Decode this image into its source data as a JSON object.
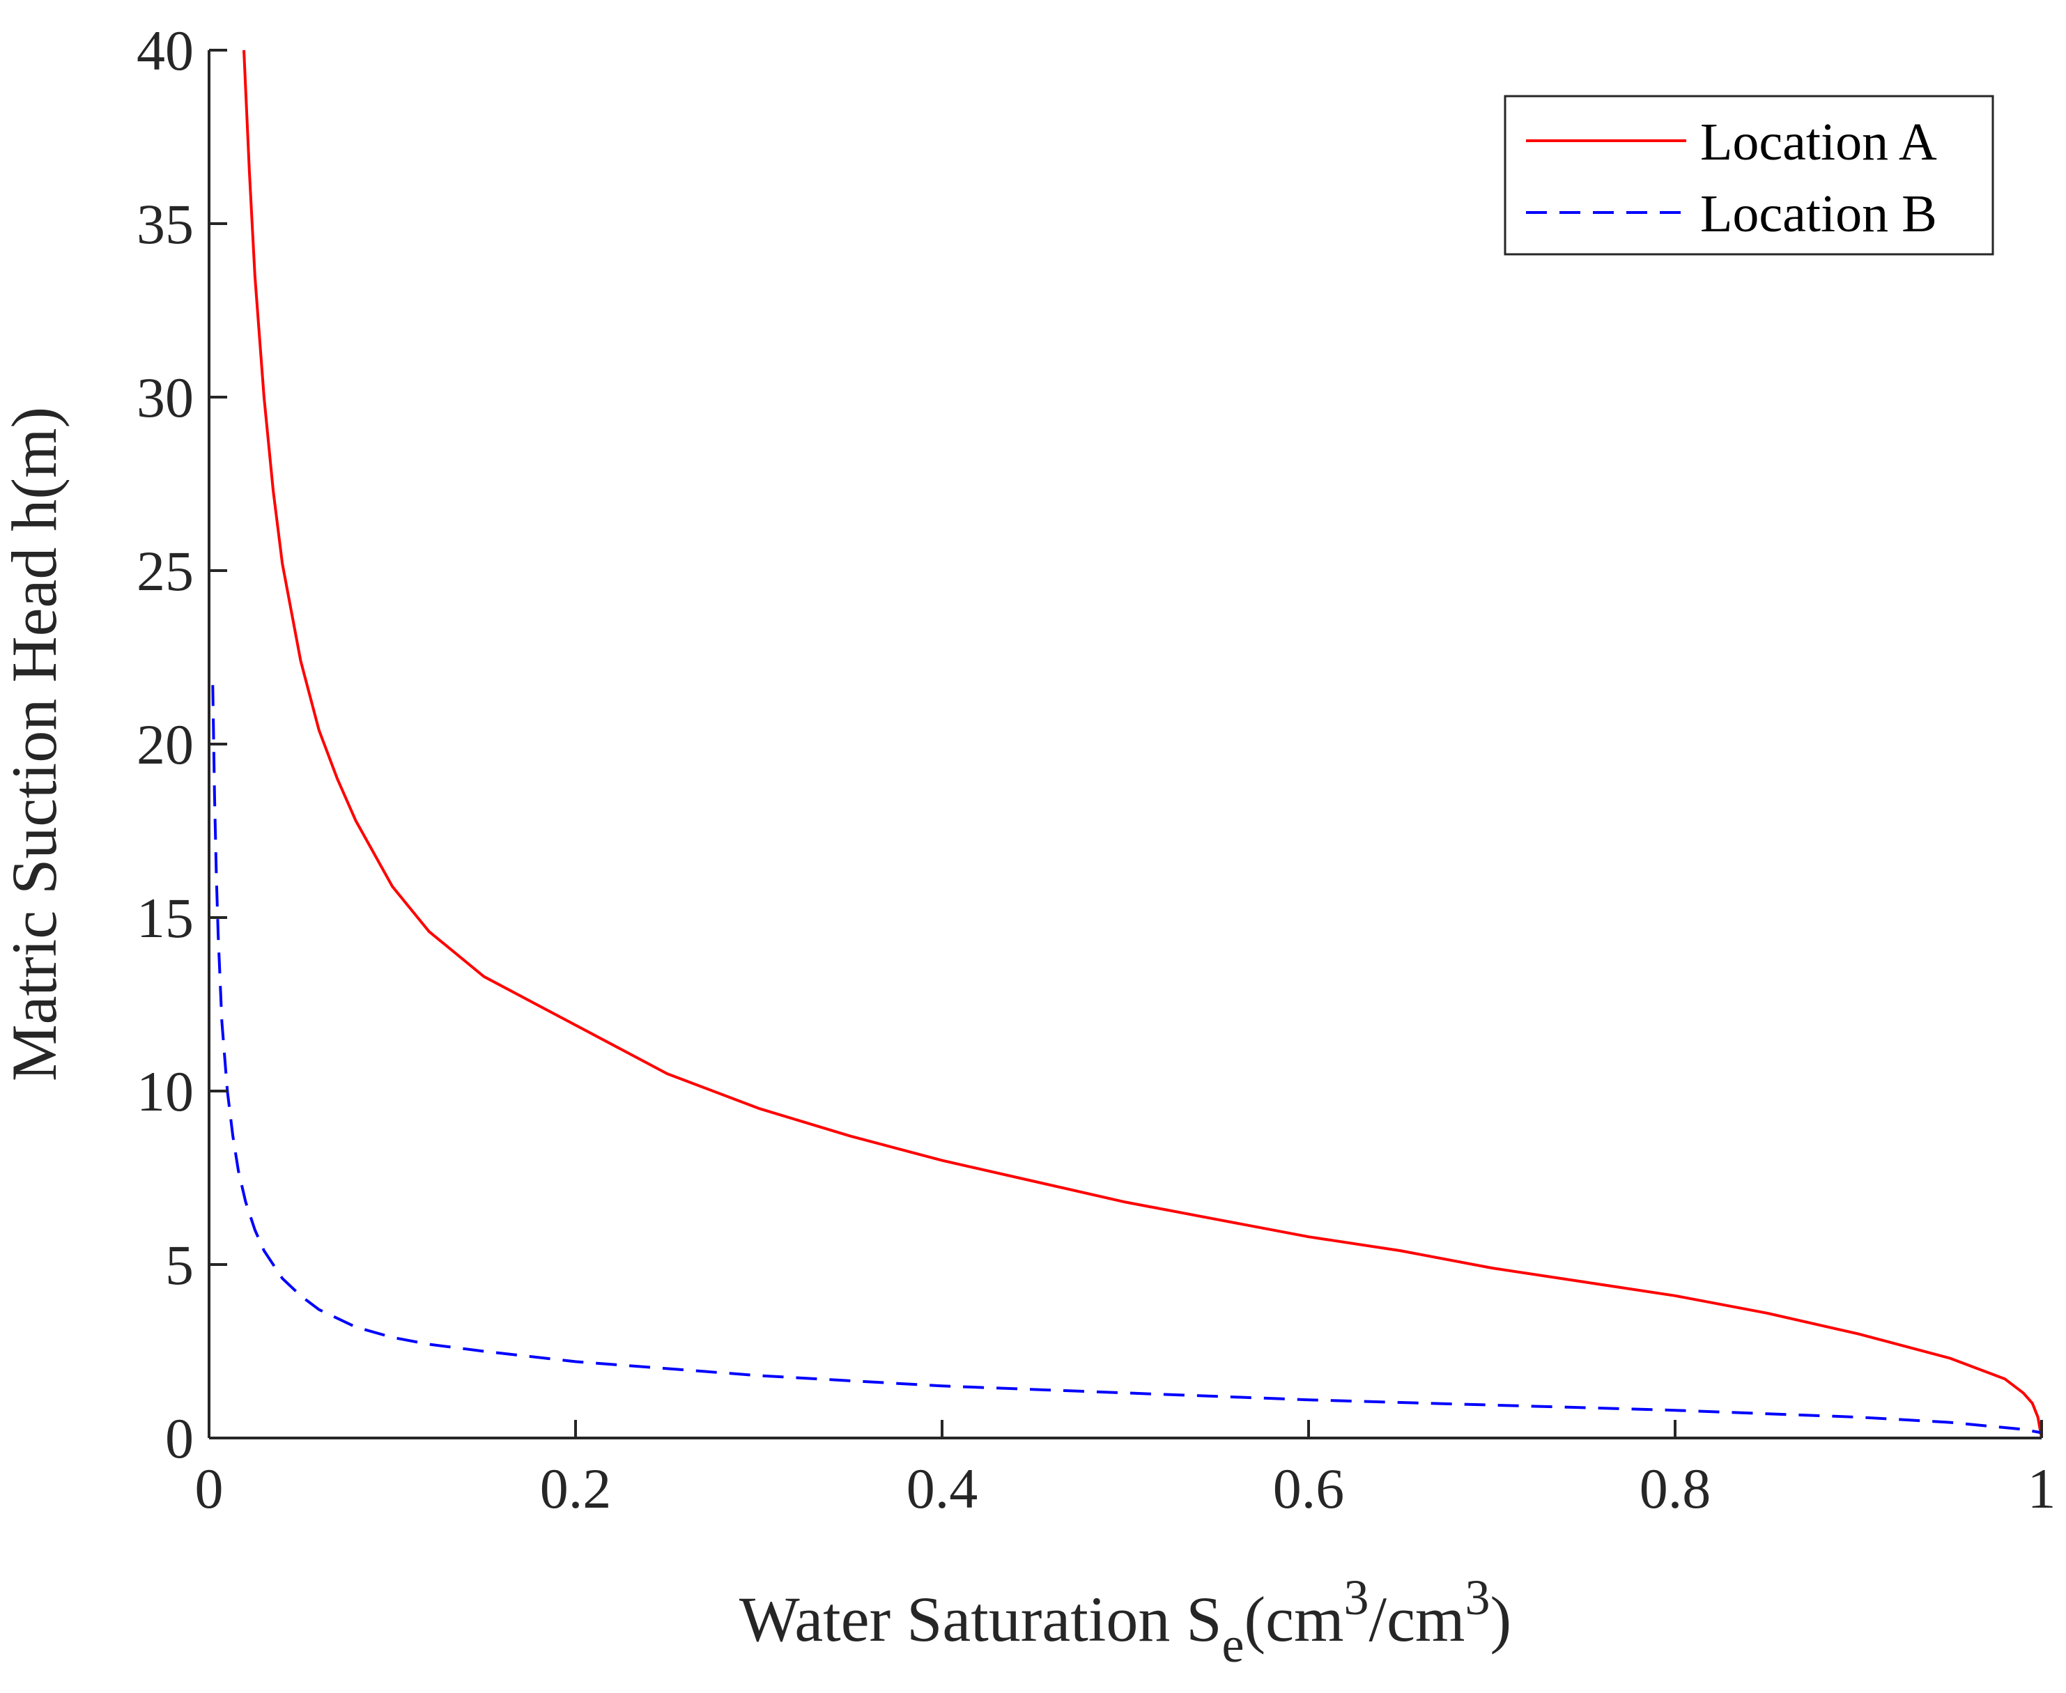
{
  "chart_data": {
    "type": "line",
    "title": "",
    "xlabel": {
      "main": "Water Saturation S",
      "sub": "e",
      "unit_open": "(cm",
      "sup1": "3",
      "unit_mid": "/cm",
      "sup2": "3",
      "unit_close": ")"
    },
    "ylabel": "Matric Suction Head h(m)",
    "xlim": [
      0,
      1
    ],
    "ylim": [
      0,
      40
    ],
    "xticks": [
      0,
      0.2,
      0.4,
      0.6,
      0.8,
      1
    ],
    "xtick_labels": [
      "0",
      "0.2",
      "0.4",
      "0.6",
      "0.8",
      "1"
    ],
    "yticks": [
      0,
      5,
      10,
      15,
      20,
      25,
      30,
      35,
      40
    ],
    "ytick_labels": [
      "0",
      "5",
      "10",
      "15",
      "20",
      "25",
      "30",
      "35",
      "40"
    ],
    "grid": false,
    "legend_position": "top-right",
    "series": [
      {
        "name": "Location A",
        "color": "#ff0000",
        "style": "solid",
        "x": [
          0.019,
          0.022,
          0.025,
          0.03,
          0.035,
          0.04,
          0.05,
          0.06,
          0.07,
          0.08,
          0.1,
          0.12,
          0.15,
          0.2,
          0.25,
          0.3,
          0.35,
          0.4,
          0.45,
          0.5,
          0.55,
          0.6,
          0.65,
          0.7,
          0.75,
          0.8,
          0.85,
          0.9,
          0.95,
          0.98,
          0.99,
          0.995,
          0.998,
          1.0
        ],
        "y": [
          40,
          36.5,
          33.5,
          30,
          27.3,
          25.2,
          22.4,
          20.4,
          19.0,
          17.8,
          15.9,
          14.6,
          13.3,
          11.9,
          10.5,
          9.5,
          8.7,
          8.0,
          7.4,
          6.8,
          6.3,
          5.8,
          5.4,
          4.9,
          4.5,
          4.1,
          3.6,
          3.0,
          2.3,
          1.7,
          1.3,
          1.0,
          0.6,
          0.0
        ]
      },
      {
        "name": "Location B",
        "color": "#0000ff",
        "style": "dashed",
        "x": [
          0.002,
          0.003,
          0.004,
          0.005,
          0.007,
          0.01,
          0.013,
          0.016,
          0.02,
          0.025,
          0.03,
          0.04,
          0.05,
          0.06,
          0.08,
          0.1,
          0.12,
          0.15,
          0.2,
          0.25,
          0.3,
          0.4,
          0.5,
          0.6,
          0.7,
          0.8,
          0.9,
          0.95,
          0.99,
          1.0
        ],
        "y": [
          21.7,
          18.5,
          16.2,
          14.5,
          12.0,
          10.0,
          8.7,
          7.7,
          6.8,
          6.0,
          5.4,
          4.6,
          4.1,
          3.7,
          3.2,
          2.9,
          2.7,
          2.5,
          2.2,
          2.0,
          1.8,
          1.5,
          1.3,
          1.1,
          0.95,
          0.8,
          0.6,
          0.45,
          0.25,
          0.15
        ]
      }
    ]
  }
}
